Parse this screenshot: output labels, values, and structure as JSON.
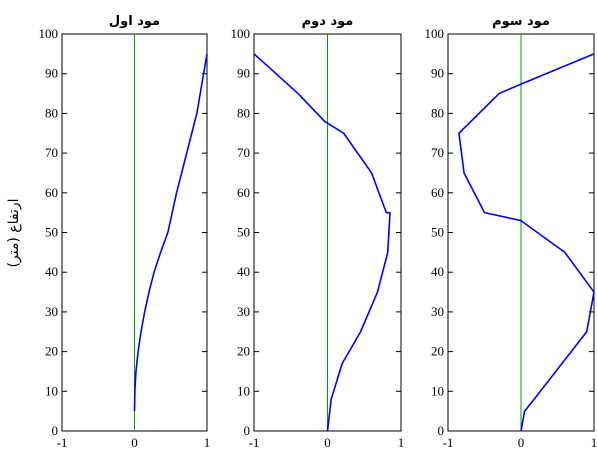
{
  "colors": {
    "mode_line": "#0000ff",
    "zero_line": "#00a000",
    "axes": "#000000",
    "background": "#ffffff"
  },
  "y_axis_label": "ارتفاع (متر)",
  "chart_data": [
    {
      "type": "line",
      "title": "مود اول",
      "xlim": [
        -1,
        1
      ],
      "ylim": [
        0,
        100
      ],
      "x_ticks": [
        -1,
        0,
        1
      ],
      "y_ticks": [
        0,
        10,
        20,
        30,
        40,
        50,
        60,
        70,
        80,
        90,
        100
      ],
      "grid": false,
      "series": [
        {
          "x": [
            0,
            0.005,
            0.02,
            0.05,
            0.09,
            0.14,
            0.2,
            0.27,
            0.36,
            0.46,
            0.58,
            0.72,
            0.86,
            1.0
          ],
          "y": [
            5,
            10,
            15,
            20,
            25,
            30,
            35,
            40,
            45,
            50,
            60,
            70,
            80,
            95
          ]
        },
        {
          "x": [
            0,
            0
          ],
          "y": [
            0,
            100
          ]
        }
      ]
    },
    {
      "type": "line",
      "title": "مود دوم",
      "xlim": [
        -1,
        1
      ],
      "ylim": [
        0,
        100
      ],
      "x_ticks": [
        -1,
        0,
        1
      ],
      "y_ticks": [
        0,
        10,
        20,
        30,
        40,
        50,
        60,
        70,
        80,
        90,
        100
      ],
      "grid": false,
      "series": [
        {
          "x": [
            0,
            0.05,
            0.2,
            0.45,
            0.68,
            0.82,
            0.85,
            0.8,
            0.6,
            0.22,
            -0.04,
            -0.4,
            -1.0
          ],
          "y": [
            0,
            8,
            17,
            25,
            35,
            45,
            55,
            55,
            65,
            75,
            78,
            85,
            95
          ]
        },
        {
          "x": [
            0,
            0
          ],
          "y": [
            0,
            100
          ]
        }
      ]
    },
    {
      "type": "line",
      "title": "مود سوم",
      "xlim": [
        -1,
        1
      ],
      "ylim": [
        0,
        100
      ],
      "x_ticks": [
        -1,
        0,
        1
      ],
      "y_ticks": [
        0,
        10,
        20,
        30,
        40,
        50,
        60,
        70,
        80,
        90,
        100
      ],
      "grid": false,
      "series": [
        {
          "x": [
            0,
            0.05,
            0.18,
            0.9,
            1.0,
            0.6,
            0.0,
            -0.5,
            -0.78,
            -0.85,
            -0.85,
            -0.3,
            -0.05,
            1.0
          ],
          "y": [
            0,
            5,
            8,
            25,
            35,
            45,
            53,
            55,
            65,
            75,
            75,
            85,
            87,
            95
          ]
        },
        {
          "x": [
            0,
            0
          ],
          "y": [
            0,
            100
          ]
        }
      ]
    }
  ]
}
